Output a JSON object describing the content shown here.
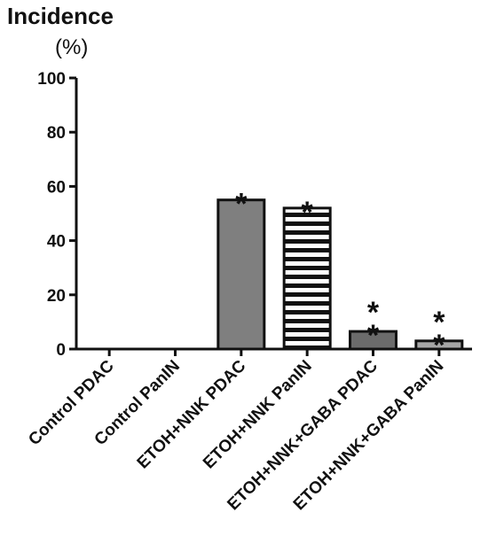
{
  "chart_data": {
    "type": "bar",
    "ylabel": "Incidence",
    "yunit": "(%)",
    "ylim": [
      0,
      100
    ],
    "yticks": [
      0,
      20,
      40,
      60,
      80,
      100
    ],
    "categories": [
      "Control PDAC",
      "Control PanIN",
      "ETOH+NNK PDAC",
      "ETOH+NNK PanIN",
      "ETOH+NNK+GABA PDAC",
      "ETOH+NNK+GABA PanIN"
    ],
    "values": [
      0,
      0,
      55,
      52,
      6.5,
      3
    ],
    "fills": [
      "gray",
      "gray",
      "gray",
      "striped",
      "darkgray",
      "lightgray"
    ],
    "significance": [
      "",
      "",
      "*",
      "*",
      "**",
      "**"
    ],
    "grid": false,
    "colors": {
      "axis": "#111111",
      "gray": "#7f7f7f",
      "darkgray": "#6b6b6b",
      "lightgray": "#a6a6a6",
      "stripe": "#111111",
      "background": "#ffffff"
    }
  }
}
